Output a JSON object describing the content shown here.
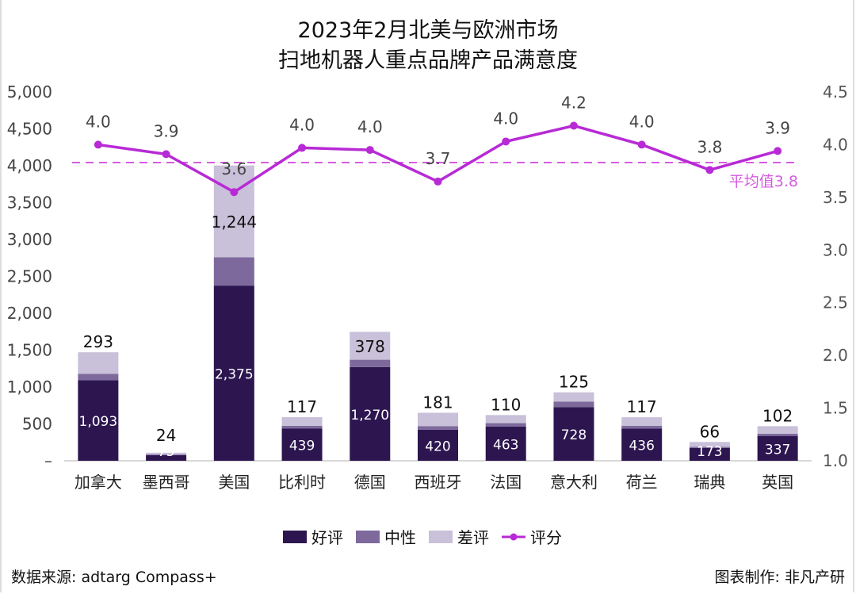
{
  "title_line1": "2023年2月北美与欧洲市场",
  "title_line2": "扫地机器人重点品牌产品满意度",
  "footer": {
    "source": "数据来源: adtarg Compass+",
    "credit": "图表制作: 非凡产研"
  },
  "chart_data": {
    "type": "bar",
    "stacked": true,
    "categories": [
      "加拿大",
      "墨西哥",
      "美国",
      "比利时",
      "德国",
      "西班牙",
      "法国",
      "意大利",
      "荷兰",
      "瑞典",
      "英国"
    ],
    "series": [
      {
        "name": "好评",
        "axis": "left",
        "color": "#2d1650",
        "values": [
          1093,
          75,
          2375,
          439,
          1270,
          420,
          463,
          728,
          436,
          173,
          337
        ]
      },
      {
        "name": "中性",
        "axis": "left",
        "color": "#7d699b",
        "values": [
          85,
          10,
          385,
          35,
          100,
          50,
          47,
          75,
          37,
          16,
          30
        ]
      },
      {
        "name": "差评",
        "axis": "left",
        "color": "#c9c0d9",
        "values": [
          293,
          24,
          1244,
          117,
          378,
          181,
          110,
          125,
          117,
          66,
          102
        ]
      },
      {
        "name": "评分",
        "axis": "right",
        "type": "line",
        "color": "#b82ad6",
        "values": [
          4.0,
          3.91,
          3.55,
          3.97,
          3.95,
          3.65,
          4.03,
          4.18,
          4.0,
          3.76,
          3.94
        ],
        "labels": [
          "4.0",
          "3.9",
          "3.6",
          "4.0",
          "4.0",
          "3.7",
          "4.0",
          "4.2",
          "4.0",
          "3.8",
          "3.9"
        ]
      }
    ],
    "left_axis": {
      "range": [
        0,
        5000
      ],
      "ticks": [
        "–",
        "500",
        "1,000",
        "1,500",
        "2,000",
        "2,500",
        "3,000",
        "3,500",
        "4,000",
        "4,500",
        "5,000"
      ]
    },
    "right_axis": {
      "range": [
        1.0,
        4.5
      ],
      "ticks": [
        "1.0",
        "1.5",
        "2.0",
        "2.5",
        "3.0",
        "3.5",
        "4.0",
        "4.5"
      ]
    },
    "average": {
      "value": 3.83,
      "label": "平均值3.8",
      "color": "#d65ce0"
    },
    "labeled_series": [
      "好评",
      "差评",
      "评分"
    ],
    "grid": false,
    "legend": "bottom"
  }
}
